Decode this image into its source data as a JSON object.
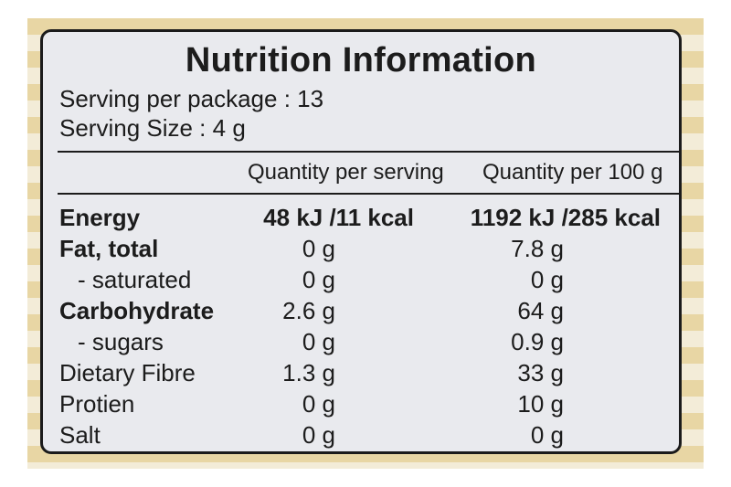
{
  "title": "Nutrition Information",
  "serving_per_package": "Serving per package : 13",
  "serving_size": "Serving Size : 4 g",
  "columns": {
    "per_serving": "Quantity per serving",
    "per_100g": "Quantity per 100 g"
  },
  "rows": [
    {
      "label": "Energy",
      "per_serving": "48 kJ /11 kcal",
      "per_100g": "1192 kJ /285 kcal"
    },
    {
      "label": "Fat, total",
      "per_serving": "0 g",
      "per_100g": "7.8 g"
    },
    {
      "label": "- saturated",
      "per_serving": "0 g",
      "per_100g": "0 g"
    },
    {
      "label": "Carbohydrate",
      "per_serving": "2.6 g",
      "per_100g": "64 g"
    },
    {
      "label": "- sugars",
      "per_serving": "0 g",
      "per_100g": "0.9 g"
    },
    {
      "label": "Dietary Fibre",
      "per_serving": "1.3 g",
      "per_100g": "33 g"
    },
    {
      "label": "Protien",
      "per_serving": "0 g",
      "per_100g": "10 g"
    },
    {
      "label": "Salt",
      "per_serving": "0 g",
      "per_100g": "0 g"
    }
  ]
}
